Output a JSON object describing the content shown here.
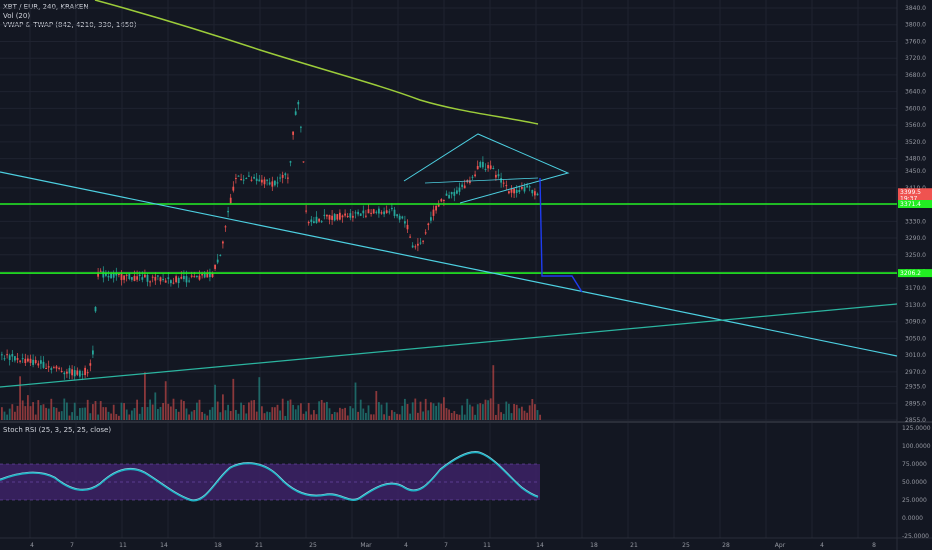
{
  "header": {
    "symbol_line": "XBT / EUR, 240, KRAKEN",
    "vol_line": "Vol (20)",
    "vwap_line": "VWAP & TWAP (842, 4210, 330, 1650)",
    "stoch_line": "Stoch RSI (25, 3, 25, 25, close)"
  },
  "colors": {
    "background": "#131722",
    "grid": "#1f2330",
    "up": "#26a69a",
    "down": "#ef5350",
    "hline": "#22ee22",
    "vwap": "#9ccc3a",
    "trend": "#4dd0e1",
    "stoch_band": "#3d2266",
    "projection": "#1e3cf0"
  },
  "chart_data": [
    {
      "type": "candlestick",
      "price_axis_ticks": [
        "3840.0",
        "3800.0",
        "3760.0",
        "3720.0",
        "3680.0",
        "3640.0",
        "3600.0",
        "3560.0",
        "3520.0",
        "3480.0",
        "3450.0",
        "3410.0",
        "3370.0",
        "3330.0",
        "3290.0",
        "3250.0",
        "3210.0",
        "3170.0",
        "3130.0",
        "3090.0",
        "3050.0",
        "3010.0",
        "2970.0",
        "2935.0",
        "2895.0",
        "2855.0"
      ],
      "price_tags": [
        {
          "label": "3399.5",
          "color": "#ef5350",
          "price": 3399.5
        },
        {
          "label": "19:37",
          "color": "#ef5350",
          "price": 3385
        },
        {
          "label": "3371.4",
          "color": "#22ee22",
          "price": 3371.4
        },
        {
          "label": "3206.2",
          "color": "#22ee22",
          "price": 3206.2
        }
      ],
      "horizontal_levels": [
        3371.4,
        3206.2
      ],
      "x_tick_labels": [
        "4",
        "7",
        "11",
        "14",
        "18",
        "21",
        "25",
        "Mar",
        "4",
        "7",
        "11",
        "14",
        "18",
        "21",
        "25",
        "28",
        "Apr",
        "4",
        "8"
      ],
      "volume_axis_labels": [
        "2855.0"
      ]
    },
    {
      "type": "line",
      "title": "Stoch RSI (25, 3, 25, 25, close)",
      "y_ticks": [
        "125.0000",
        "100.0000",
        "75.0000",
        "50.0000",
        "25.0000",
        "0.0000",
        "-25.0000"
      ],
      "band": [
        25,
        75
      ]
    }
  ]
}
